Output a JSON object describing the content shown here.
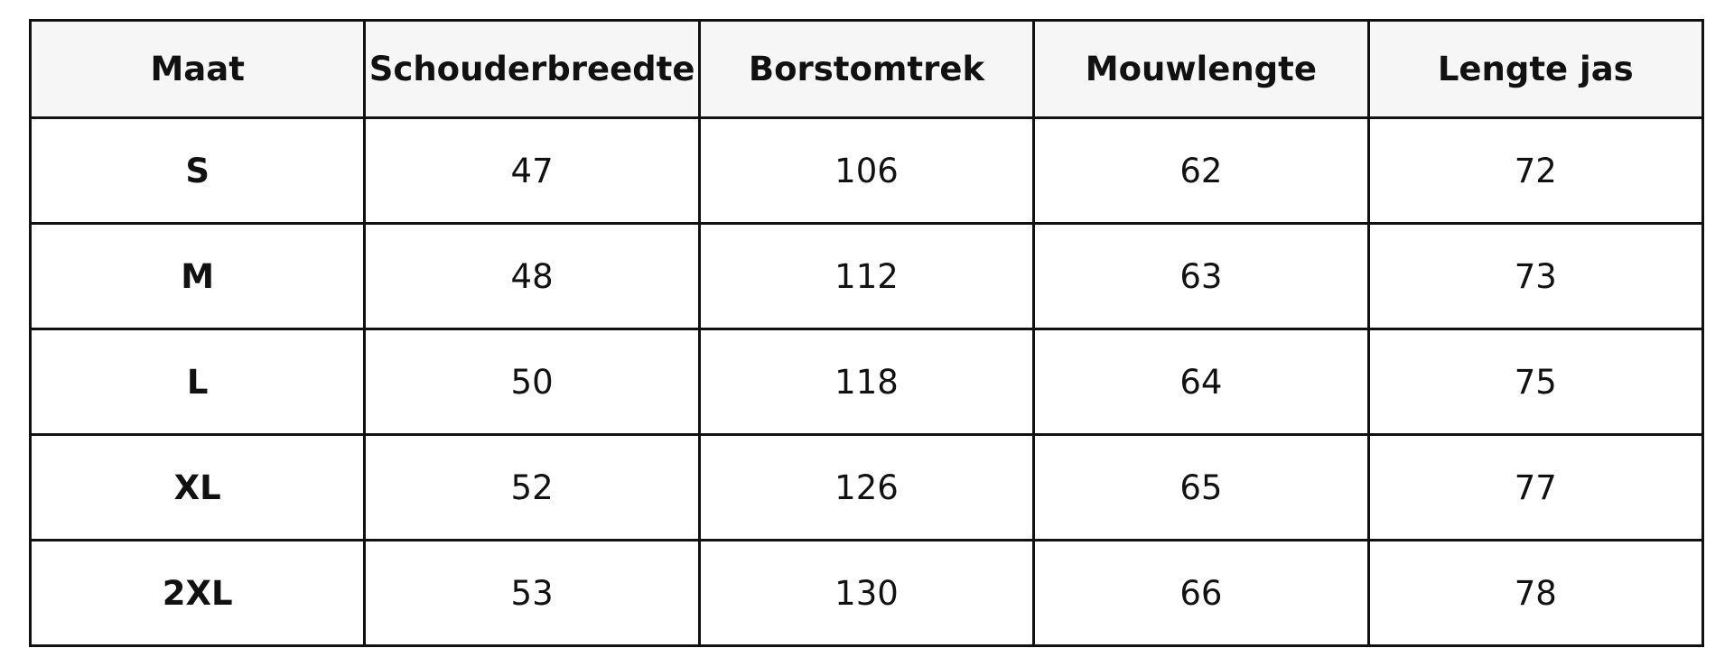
{
  "table": {
    "header": [
      "Maat",
      "Schouderbreedte",
      "Borstomtrek",
      "Mouwlengte",
      "Lengte jas"
    ],
    "rows": [
      [
        "S",
        47,
        106,
        62,
        72
      ],
      [
        "M",
        48,
        112,
        63,
        73
      ],
      [
        "L",
        50,
        118,
        64,
        75
      ],
      [
        "XL",
        52,
        126,
        65,
        77
      ],
      [
        "2XL",
        53,
        130,
        66,
        78
      ]
    ]
  }
}
